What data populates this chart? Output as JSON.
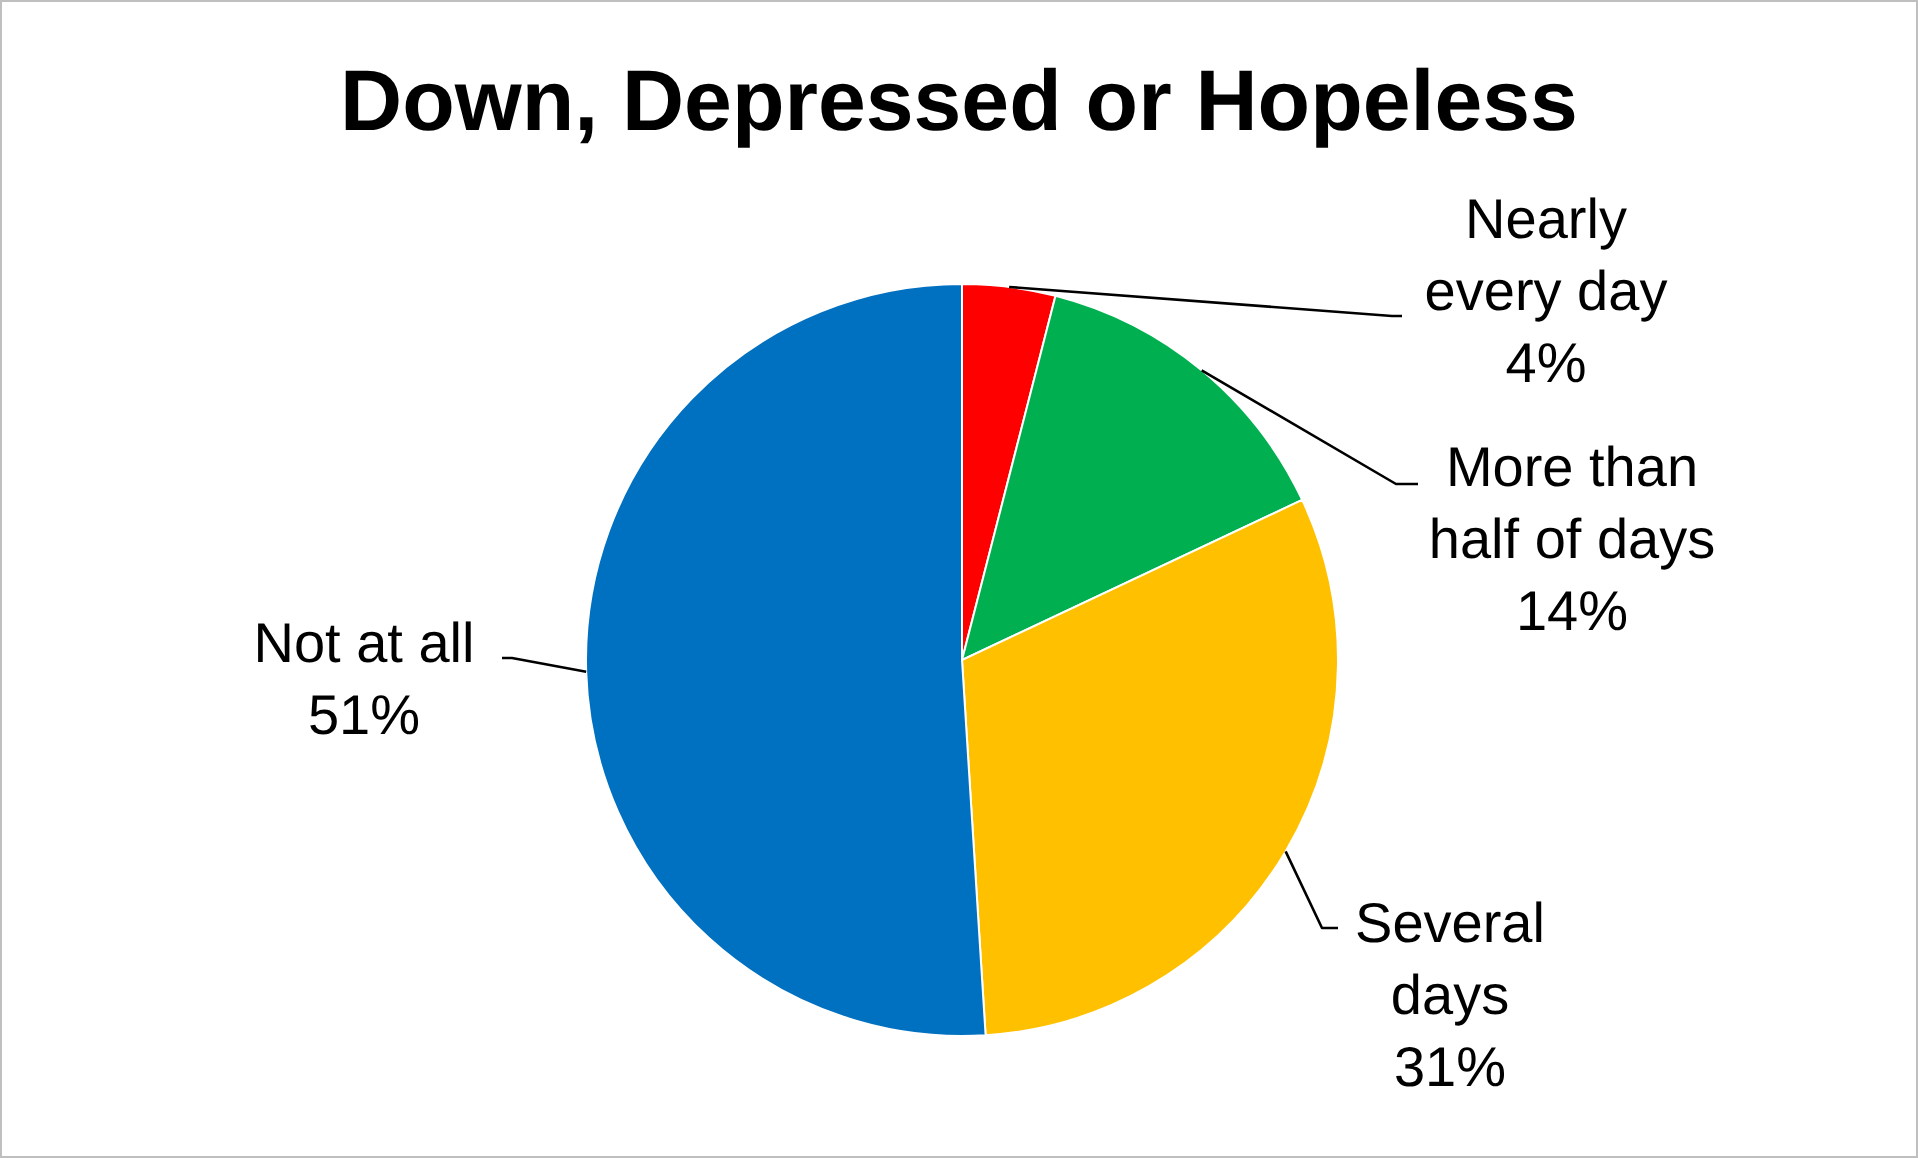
{
  "chart_data": {
    "type": "pie",
    "title": "Down, Depressed or Hopeless",
    "categories": [
      "Nearly every day",
      "More than half of days",
      "Several days",
      "Not at all"
    ],
    "values": [
      4,
      14,
      31,
      51
    ],
    "colors": [
      "#ff0000",
      "#00b050",
      "#ffc000",
      "#0070c0"
    ],
    "value_labels": [
      "4%",
      "14%",
      "31%",
      "51%"
    ],
    "legend": false
  }
}
